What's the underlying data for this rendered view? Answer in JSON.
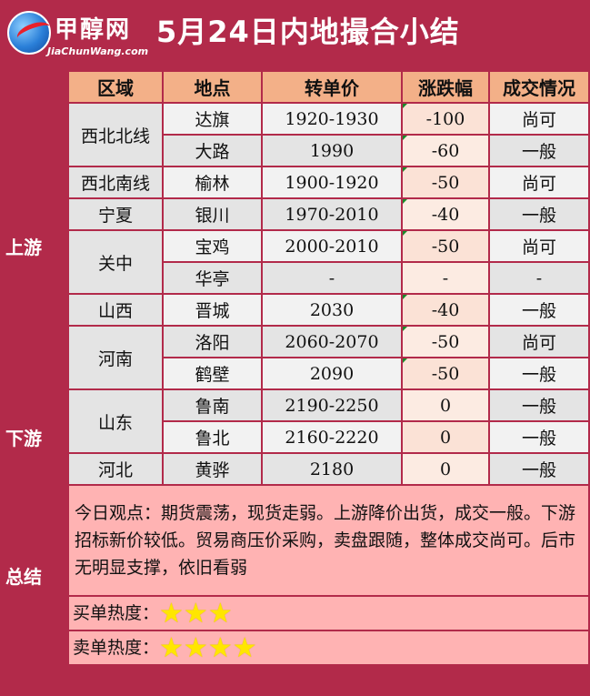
{
  "logo": {
    "cn": "甲醇网",
    "en": "JiaChunWang.com"
  },
  "title": "5月24日内地撮合小结",
  "headers": [
    "区域",
    "地点",
    "转单价",
    "涨跌幅",
    "成交情况"
  ],
  "groups": {
    "upstream": "上游",
    "downstream": "下游",
    "summary": "总结"
  },
  "regions": {
    "xbbx": "西北北线",
    "xbnx": "西北南线",
    "nx": "宁夏",
    "gz": "关中",
    "sx": "山西",
    "hn": "河南",
    "sd": "山东",
    "hb": "河北"
  },
  "rows": [
    {
      "place": "达旗",
      "price": "1920-1930",
      "change": "-100",
      "deal": "尚可"
    },
    {
      "place": "大路",
      "price": "1990",
      "change": "-60",
      "deal": "一般"
    },
    {
      "place": "榆林",
      "price": "1900-1920",
      "change": "-50",
      "deal": "尚可"
    },
    {
      "place": "银川",
      "price": "1970-2010",
      "change": "-40",
      "deal": "一般"
    },
    {
      "place": "宝鸡",
      "price": "2000-2010",
      "change": "-50",
      "deal": "尚可"
    },
    {
      "place": "华亭",
      "price": "-",
      "change": "-",
      "deal": "-"
    },
    {
      "place": "晋城",
      "price": "2030",
      "change": "-40",
      "deal": "一般"
    },
    {
      "place": "洛阳",
      "price": "2060-2070",
      "change": "-50",
      "deal": "尚可"
    },
    {
      "place": "鹤壁",
      "price": "2090",
      "change": "-50",
      "deal": "一般"
    },
    {
      "place": "鲁南",
      "price": "2190-2250",
      "change": "0",
      "deal": "一般"
    },
    {
      "place": "鲁北",
      "price": "2160-2220",
      "change": "0",
      "deal": "一般"
    },
    {
      "place": "黄骅",
      "price": "2180",
      "change": "0",
      "deal": "一般"
    }
  ],
  "summary": {
    "text": "今日观点：期货震荡，现货走弱。上游降价出货，成交一般。下游招标新价较低。贸易商压价采购，卖盘跟随，整体成交尚可。后市无明显支撑，依旧看弱",
    "buy_label": "买单热度：",
    "buy_stars": 3,
    "sell_label": "卖单热度：",
    "sell_stars": 4
  },
  "colors": {
    "brand": "#b22a4a",
    "header_fill": "#f3b088",
    "summary_fill": "#ffb3b3",
    "star": "#ffe600"
  }
}
